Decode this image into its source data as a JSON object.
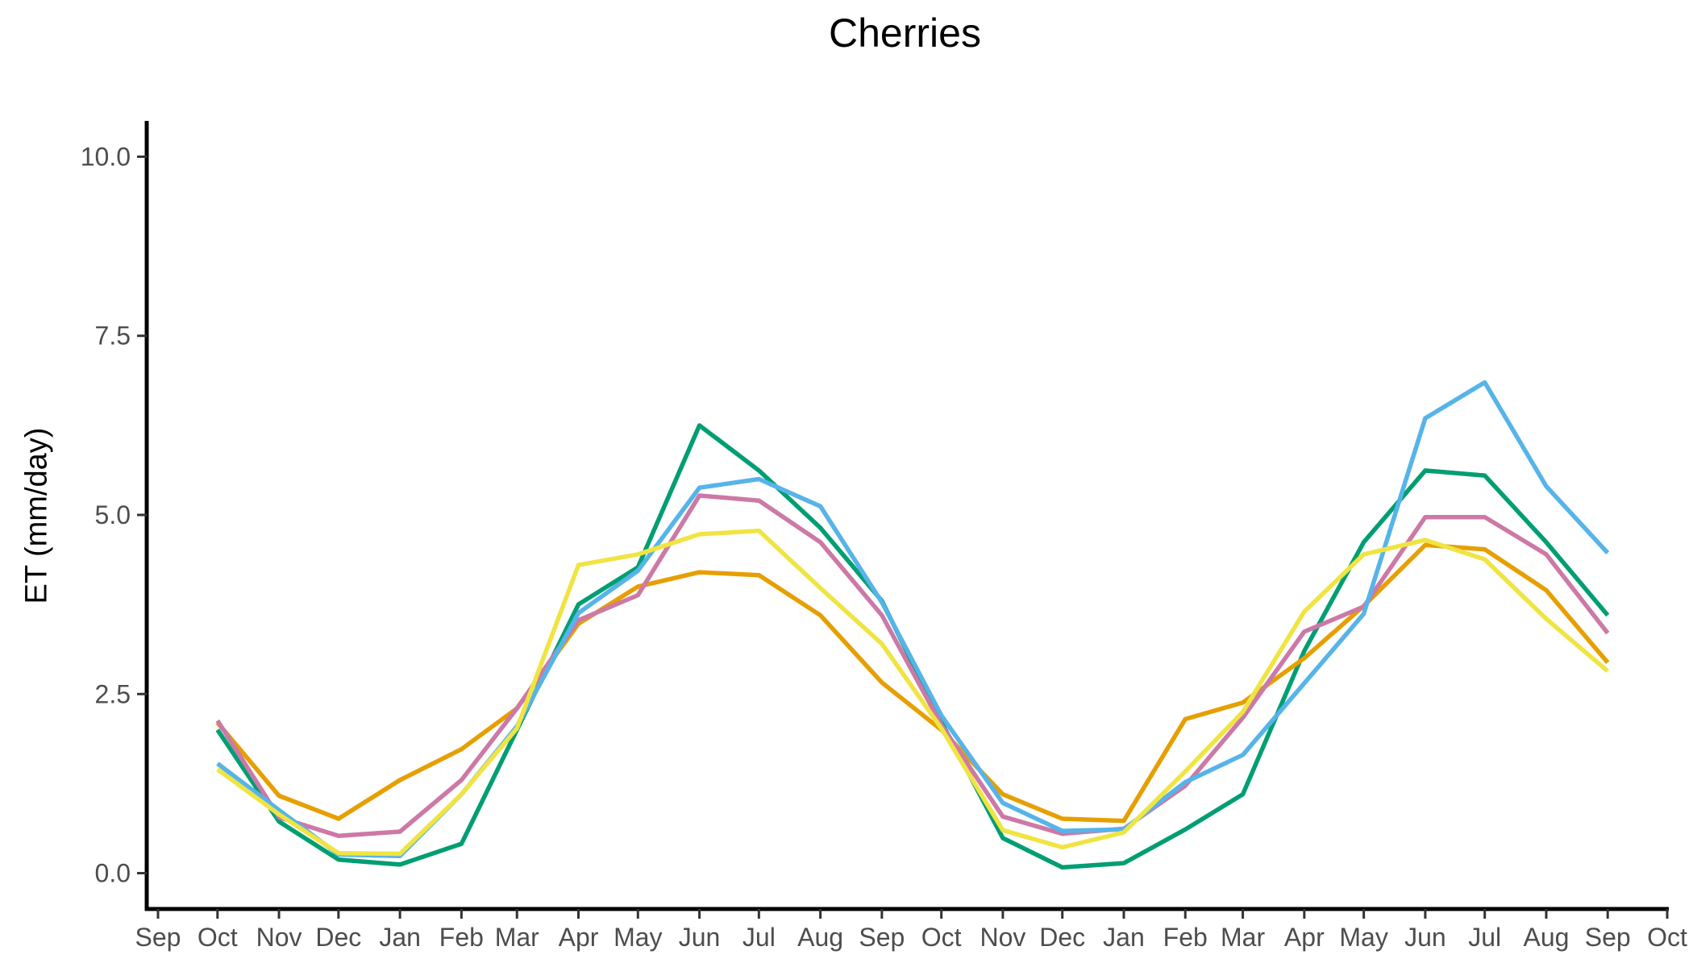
{
  "chart_data": {
    "type": "line",
    "title": "Cherries",
    "xlabel": "",
    "ylabel": "ET (mm/day)",
    "ylim": [
      -0.5,
      10.5
    ],
    "yticks": [
      "0.0",
      "2.5",
      "5.0",
      "7.5",
      "10.0"
    ],
    "xlim": [
      "2002-09-01",
      "2004-10-01"
    ],
    "xticks": [
      {
        "date": "2002-09-01",
        "label": "Sep"
      },
      {
        "date": "2002-10-01",
        "label": "Oct"
      },
      {
        "date": "2002-11-01",
        "label": "Nov"
      },
      {
        "date": "2002-12-01",
        "label": "Dec"
      },
      {
        "date": "2003-01-01",
        "label": "Jan"
      },
      {
        "date": "2003-02-01",
        "label": "Feb"
      },
      {
        "date": "2003-03-01",
        "label": "Mar"
      },
      {
        "date": "2003-04-01",
        "label": "Apr"
      },
      {
        "date": "2003-05-01",
        "label": "May"
      },
      {
        "date": "2003-06-01",
        "label": "Jun"
      },
      {
        "date": "2003-07-01",
        "label": "Jul"
      },
      {
        "date": "2003-08-01",
        "label": "Aug"
      },
      {
        "date": "2003-09-01",
        "label": "Sep"
      },
      {
        "date": "2003-10-01",
        "label": "Oct"
      },
      {
        "date": "2003-11-01",
        "label": "Nov"
      },
      {
        "date": "2003-12-01",
        "label": "Dec"
      },
      {
        "date": "2004-01-01",
        "label": "Jan"
      },
      {
        "date": "2004-02-01",
        "label": "Feb"
      },
      {
        "date": "2004-03-01",
        "label": "Mar"
      },
      {
        "date": "2004-04-01",
        "label": "Apr"
      },
      {
        "date": "2004-05-01",
        "label": "May"
      },
      {
        "date": "2004-06-01",
        "label": "Jun"
      },
      {
        "date": "2004-07-01",
        "label": "Jul"
      },
      {
        "date": "2004-08-01",
        "label": "Aug"
      },
      {
        "date": "2004-09-01",
        "label": "Sep"
      },
      {
        "date": "2004-10-01",
        "label": "Oct"
      }
    ],
    "grid": false,
    "legend": "none",
    "x": [
      "2002-10-01",
      "2002-11-01",
      "2002-12-01",
      "2003-01-01",
      "2003-02-01",
      "2003-03-01",
      "2003-04-01",
      "2003-05-01",
      "2003-06-01",
      "2003-07-01",
      "2003-08-01",
      "2003-09-01",
      "2003-10-01",
      "2003-11-01",
      "2003-12-01",
      "2004-01-01",
      "2004-02-01",
      "2004-03-01",
      "2004-04-01",
      "2004-05-01",
      "2004-06-01",
      "2004-07-01",
      "2004-08-01",
      "2004-09-01"
    ],
    "series": [
      {
        "color": "#009E73",
        "values": [
          2.0,
          0.72,
          0.19,
          0.12,
          0.41,
          2.0,
          3.75,
          4.27,
          6.25,
          5.62,
          4.82,
          3.8,
          2.11,
          0.49,
          0.08,
          0.14,
          0.61,
          1.1,
          3.1,
          4.62,
          5.62,
          5.55,
          4.62,
          3.6
        ]
      },
      {
        "color": "#E69F00",
        "values": [
          2.1,
          1.08,
          0.76,
          1.3,
          1.73,
          2.3,
          3.48,
          4.0,
          4.2,
          4.16,
          3.6,
          2.66,
          2.0,
          1.1,
          0.76,
          0.73,
          2.15,
          2.38,
          3.0,
          3.73,
          4.58,
          4.52,
          3.95,
          2.94
        ]
      },
      {
        "color": "#CC79A7",
        "values": [
          2.13,
          0.78,
          0.52,
          0.58,
          1.3,
          2.3,
          3.53,
          3.88,
          5.27,
          5.2,
          4.62,
          3.6,
          2.07,
          0.79,
          0.55,
          0.62,
          1.22,
          2.17,
          3.37,
          3.72,
          4.97,
          4.97,
          4.45,
          3.35
        ]
      },
      {
        "color": "#56B4E9",
        "values": [
          1.53,
          0.88,
          0.26,
          0.24,
          1.1,
          2.05,
          3.63,
          4.22,
          5.38,
          5.5,
          5.12,
          3.78,
          2.2,
          0.98,
          0.59,
          0.61,
          1.27,
          1.65,
          2.65,
          3.62,
          6.35,
          6.85,
          5.4,
          4.47
        ]
      },
      {
        "color": "#F0E442",
        "values": [
          1.45,
          0.82,
          0.28,
          0.27,
          1.1,
          2.02,
          4.3,
          4.45,
          4.73,
          4.78,
          3.98,
          3.2,
          2.02,
          0.6,
          0.36,
          0.57,
          1.42,
          2.25,
          3.65,
          4.45,
          4.65,
          4.38,
          3.55,
          2.82
        ]
      }
    ]
  }
}
